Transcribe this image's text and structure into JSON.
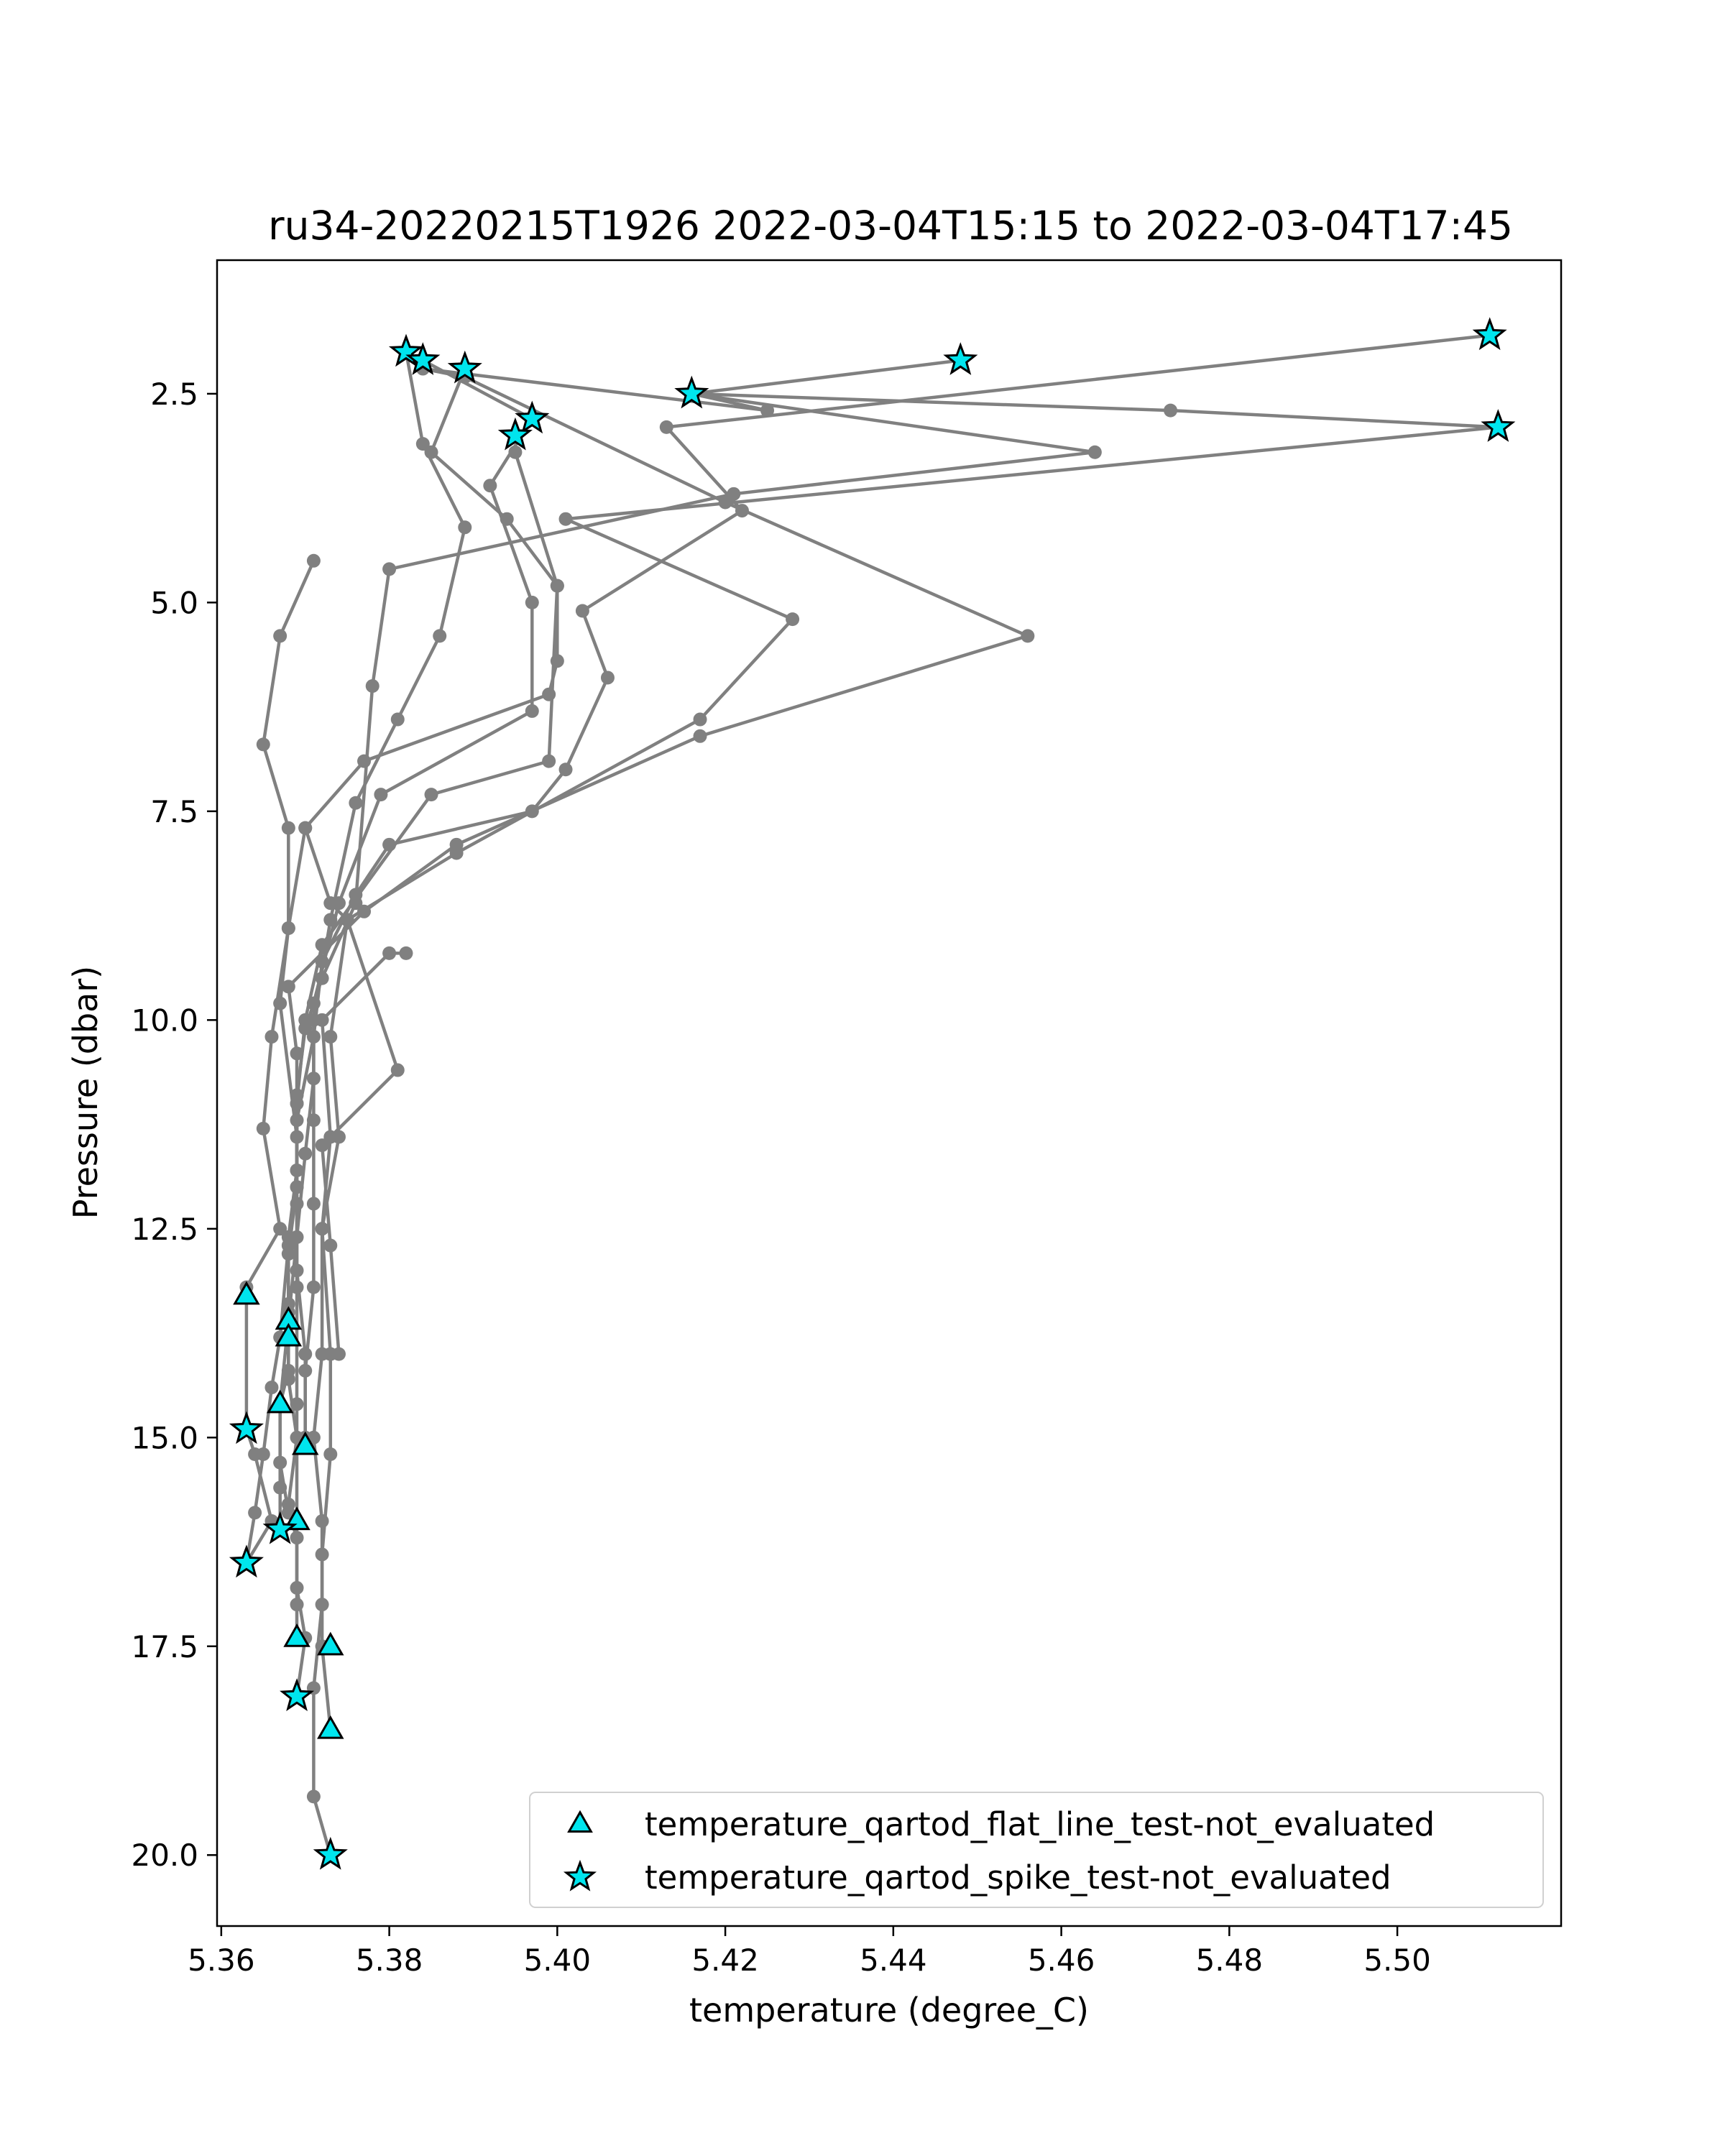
{
  "chart_data": {
    "type": "line",
    "title": "ru34-20220215T1926 2022-03-04T15:15 to 2022-03-04T17:45",
    "xlabel": "temperature (degree_C)",
    "ylabel": "Pressure (dbar)",
    "xlim": [
      5.3595,
      5.5195
    ],
    "ylim": [
      20.85,
      0.9
    ],
    "y_inverted": true,
    "grid": false,
    "xticks": [
      "5.36",
      "5.38",
      "5.40",
      "5.42",
      "5.44",
      "5.46",
      "5.48",
      "5.50"
    ],
    "xtick_values": [
      5.36,
      5.38,
      5.4,
      5.42,
      5.44,
      5.46,
      5.48,
      5.5
    ],
    "yticks": [
      "2.5",
      "5.0",
      "7.5",
      "10.0",
      "12.5",
      "15.0",
      "17.5",
      "20.0"
    ],
    "ytick_values": [
      2.5,
      5.0,
      7.5,
      10.0,
      12.5,
      15.0,
      17.5,
      20.0
    ],
    "line_color": "#808080",
    "marker_color": "#00e5ee",
    "legend": {
      "placement": "lower-right",
      "entries": [
        {
          "label": "temperature_qartod_flat_line_test-not_evaluated",
          "marker": "triangle"
        },
        {
          "label": "temperature_qartod_spike_test-not_evaluated",
          "marker": "star"
        }
      ]
    },
    "series": [
      {
        "points": [
          [
            5.382,
            2.0
          ],
          [
            5.384,
            3.1
          ],
          [
            5.389,
            4.1
          ],
          [
            5.386,
            5.4
          ],
          [
            5.381,
            6.4
          ],
          [
            5.376,
            7.4
          ],
          [
            5.373,
            8.8
          ],
          [
            5.371,
            10.0
          ],
          [
            5.371,
            11.2
          ],
          [
            5.371,
            12.2
          ],
          [
            5.371,
            13.2
          ],
          [
            5.37,
            14.2
          ],
          [
            5.37,
            15.0
          ]
        ]
      },
      {
        "points": [
          [
            5.384,
            2.1
          ],
          [
            5.397,
            2.8
          ],
          [
            5.392,
            3.6
          ],
          [
            5.397,
            5.0
          ],
          [
            5.397,
            6.3
          ],
          [
            5.379,
            7.3
          ],
          [
            5.374,
            8.6
          ],
          [
            5.371,
            9.8
          ],
          [
            5.371,
            10.7
          ],
          [
            5.37,
            11.6
          ],
          [
            5.369,
            12.6
          ],
          [
            5.368,
            13.6
          ],
          [
            5.367,
            14.6
          ],
          [
            5.367,
            15.6
          ],
          [
            5.367,
            16.1
          ]
        ]
      },
      {
        "points": [
          [
            5.389,
            2.2
          ],
          [
            5.385,
            3.2
          ],
          [
            5.394,
            4.0
          ],
          [
            5.4,
            4.8
          ],
          [
            5.4,
            5.7
          ],
          [
            5.399,
            6.1
          ],
          [
            5.377,
            6.9
          ],
          [
            5.37,
            7.7
          ],
          [
            5.368,
            8.9
          ],
          [
            5.367,
            9.8
          ],
          [
            5.369,
            11.4
          ],
          [
            5.369,
            12.2
          ],
          [
            5.369,
            13.2
          ],
          [
            5.369,
            14.6
          ],
          [
            5.369,
            16.0
          ]
        ]
      },
      {
        "points": [
          [
            5.448,
            2.1
          ],
          [
            5.416,
            2.5
          ],
          [
            5.473,
            2.7
          ],
          [
            5.512,
            2.9
          ],
          [
            5.401,
            4.0
          ],
          [
            5.428,
            5.2
          ],
          [
            5.417,
            6.4
          ],
          [
            5.388,
            8.0
          ],
          [
            5.375,
            8.8
          ],
          [
            5.373,
            10.2
          ],
          [
            5.374,
            11.4
          ],
          [
            5.372,
            12.5
          ],
          [
            5.373,
            14.0
          ],
          [
            5.373,
            15.2
          ],
          [
            5.372,
            16.4
          ],
          [
            5.372,
            17.5
          ],
          [
            5.373,
            18.5
          ]
        ]
      },
      {
        "points": [
          [
            5.416,
            2.5
          ],
          [
            5.425,
            2.7
          ],
          [
            5.384,
            2.2
          ],
          [
            5.389,
            2.3
          ],
          [
            5.42,
            3.8
          ],
          [
            5.456,
            5.4
          ],
          [
            5.417,
            6.6
          ],
          [
            5.388,
            7.9
          ],
          [
            5.377,
            8.7
          ],
          [
            5.368,
            9.6
          ],
          [
            5.369,
            10.4
          ],
          [
            5.369,
            11.0
          ],
          [
            5.369,
            11.8
          ],
          [
            5.368,
            12.6
          ],
          [
            5.368,
            13.5
          ],
          [
            5.368,
            14.3
          ],
          [
            5.369,
            15.0
          ],
          [
            5.368,
            15.8
          ],
          [
            5.369,
            16.0
          ],
          [
            5.369,
            16.8
          ],
          [
            5.37,
            17.4
          ],
          [
            5.369,
            18.1
          ]
        ]
      },
      {
        "points": [
          [
            5.511,
            1.8
          ],
          [
            5.413,
            2.9
          ],
          [
            5.422,
            3.9
          ],
          [
            5.403,
            5.1
          ],
          [
            5.406,
            5.9
          ],
          [
            5.401,
            7.0
          ],
          [
            5.397,
            7.5
          ],
          [
            5.38,
            7.9
          ],
          [
            5.376,
            8.5
          ],
          [
            5.372,
            9.3
          ],
          [
            5.371,
            10.2
          ],
          [
            5.369,
            11.2
          ],
          [
            5.369,
            12.0
          ],
          [
            5.368,
            12.8
          ],
          [
            5.368,
            13.4
          ],
          [
            5.368,
            14.2
          ],
          [
            5.367,
            14.6
          ],
          [
            5.367,
            15.3
          ],
          [
            5.368,
            15.9
          ],
          [
            5.369,
            16.2
          ],
          [
            5.369,
            17.0
          ],
          [
            5.369,
            17.4
          ]
        ]
      },
      {
        "points": [
          [
            5.395,
            3.2
          ],
          [
            5.4,
            4.8
          ],
          [
            5.399,
            6.9
          ],
          [
            5.385,
            7.3
          ],
          [
            5.372,
            9.1
          ],
          [
            5.37,
            10.0
          ],
          [
            5.369,
            11.0
          ],
          [
            5.369,
            12.0
          ],
          [
            5.369,
            13.0
          ],
          [
            5.37,
            14.0
          ],
          [
            5.37,
            15.1
          ]
        ]
      },
      {
        "points": [
          [
            5.416,
            2.5
          ],
          [
            5.464,
            3.2
          ],
          [
            5.421,
            3.7
          ],
          [
            5.38,
            4.6
          ],
          [
            5.378,
            6.0
          ],
          [
            5.376,
            8.6
          ],
          [
            5.372,
            9.5
          ],
          [
            5.37,
            10.1
          ],
          [
            5.369,
            10.9
          ],
          [
            5.369,
            11.8
          ],
          [
            5.368,
            12.7
          ],
          [
            5.367,
            13.8
          ],
          [
            5.366,
            14.4
          ],
          [
            5.365,
            15.2
          ],
          [
            5.364,
            15.9
          ],
          [
            5.363,
            16.5
          ]
        ]
      },
      {
        "points": [
          [
            5.371,
            4.5
          ],
          [
            5.367,
            5.4
          ],
          [
            5.365,
            6.7
          ],
          [
            5.368,
            7.7
          ],
          [
            5.368,
            8.9
          ],
          [
            5.366,
            10.2
          ],
          [
            5.365,
            11.3
          ],
          [
            5.367,
            12.5
          ],
          [
            5.363,
            13.2
          ],
          [
            5.363,
            14.9
          ],
          [
            5.364,
            15.2
          ],
          [
            5.366,
            16.0
          ],
          [
            5.363,
            16.5
          ]
        ]
      },
      {
        "points": [
          [
            5.37,
            7.7
          ],
          [
            5.373,
            8.6
          ],
          [
            5.375,
            8.8
          ],
          [
            5.381,
            10.6
          ],
          [
            5.372,
            11.5
          ],
          [
            5.373,
            12.7
          ],
          [
            5.374,
            14.0
          ],
          [
            5.373,
            14.0
          ]
        ]
      },
      {
        "points": [
          [
            5.382,
            9.2
          ],
          [
            5.38,
            9.2
          ],
          [
            5.372,
            10.0
          ],
          [
            5.373,
            11.4
          ],
          [
            5.372,
            12.5
          ],
          [
            5.372,
            14.0
          ],
          [
            5.371,
            15.0
          ],
          [
            5.372,
            16.0
          ],
          [
            5.372,
            17.0
          ],
          [
            5.371,
            18.0
          ],
          [
            5.371,
            19.3
          ],
          [
            5.373,
            20.0
          ]
        ]
      }
    ],
    "flat_line_points": [
      [
        5.363,
        13.3
      ],
      [
        5.368,
        13.6
      ],
      [
        5.368,
        13.8
      ],
      [
        5.367,
        14.6
      ],
      [
        5.37,
        15.1
      ],
      [
        5.369,
        16.0
      ],
      [
        5.369,
        17.4
      ],
      [
        5.373,
        17.5
      ],
      [
        5.373,
        18.5
      ]
    ],
    "spike_points": [
      [
        5.382,
        2.0
      ],
      [
        5.384,
        2.1
      ],
      [
        5.389,
        2.2
      ],
      [
        5.397,
        2.8
      ],
      [
        5.395,
        3.0
      ],
      [
        5.416,
        2.5
      ],
      [
        5.448,
        2.1
      ],
      [
        5.511,
        1.8
      ],
      [
        5.512,
        2.9
      ],
      [
        5.363,
        14.9
      ],
      [
        5.367,
        16.1
      ],
      [
        5.363,
        16.5
      ],
      [
        5.369,
        18.1
      ],
      [
        5.373,
        20.0
      ]
    ]
  }
}
